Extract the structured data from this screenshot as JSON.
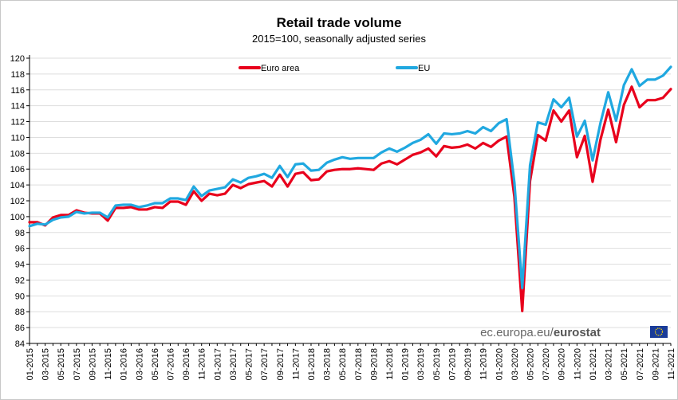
{
  "chart_data": {
    "type": "line",
    "title": "Retail trade volume",
    "subtitle": "2015=100, seasonally adjusted series",
    "ylim": [
      84,
      120
    ],
    "yticks": [
      84,
      86,
      88,
      90,
      92,
      94,
      96,
      98,
      100,
      102,
      104,
      106,
      108,
      110,
      112,
      114,
      116,
      118,
      120
    ],
    "grid": true,
    "legend_position": "top",
    "x": [
      "01-2015",
      "02-2015",
      "03-2015",
      "04-2015",
      "05-2015",
      "06-2015",
      "07-2015",
      "08-2015",
      "09-2015",
      "10-2015",
      "11-2015",
      "12-2015",
      "01-2016",
      "02-2016",
      "03-2016",
      "04-2016",
      "05-2016",
      "06-2016",
      "07-2016",
      "08-2016",
      "09-2016",
      "10-2016",
      "11-2016",
      "12-2016",
      "01-2017",
      "02-2017",
      "03-2017",
      "04-2017",
      "05-2017",
      "06-2017",
      "07-2017",
      "08-2017",
      "09-2017",
      "10-2017",
      "11-2017",
      "12-2017",
      "01-2018",
      "02-2018",
      "03-2018",
      "04-2018",
      "05-2018",
      "06-2018",
      "07-2018",
      "08-2018",
      "09-2018",
      "10-2018",
      "11-2018",
      "12-2018",
      "01-2019",
      "02-2019",
      "03-2019",
      "04-2019",
      "05-2019",
      "06-2019",
      "07-2019",
      "08-2019",
      "09-2019",
      "10-2019",
      "11-2019",
      "12-2019",
      "01-2020",
      "02-2020",
      "03-2020",
      "04-2020",
      "05-2020",
      "06-2020",
      "07-2020",
      "08-2020",
      "09-2020",
      "10-2020",
      "11-2020",
      "12-2020",
      "01-2021",
      "02-2021",
      "03-2021",
      "04-2021",
      "05-2021",
      "06-2021",
      "07-2021",
      "08-2021",
      "09-2021",
      "10-2021",
      "11-2021"
    ],
    "xtick_labels": [
      "01-2015",
      "03-2015",
      "05-2015",
      "07-2015",
      "09-2015",
      "11-2015",
      "01-2016",
      "03-2016",
      "05-2016",
      "07-2016",
      "09-2016",
      "11-2016",
      "01-2017",
      "03-2017",
      "05-2017",
      "07-2017",
      "09-2017",
      "11-2017",
      "01-2018",
      "03-2018",
      "05-2018",
      "07-2018",
      "09-2018",
      "11-2018",
      "01-2019",
      "03-2019",
      "05-2019",
      "07-2019",
      "09-2019",
      "11-2019",
      "01-2020",
      "03-2020",
      "05-2020",
      "07-2020",
      "09-2020",
      "11-2020",
      "01-2021",
      "03-2021",
      "05-2021",
      "07-2021",
      "09-2021",
      "11-2021"
    ],
    "series": [
      {
        "name": "Euro area",
        "color": "#e8001c",
        "values": [
          99.3,
          99.3,
          98.9,
          99.9,
          100.2,
          100.2,
          100.8,
          100.5,
          100.4,
          100.4,
          99.5,
          101.1,
          101.1,
          101.2,
          100.9,
          100.9,
          101.2,
          101.1,
          101.9,
          101.9,
          101.5,
          103.2,
          102.0,
          102.9,
          102.7,
          102.9,
          104.0,
          103.6,
          104.1,
          104.3,
          104.5,
          103.8,
          105.3,
          103.8,
          105.4,
          105.6,
          104.6,
          104.7,
          105.7,
          105.9,
          106.0,
          106.0,
          106.1,
          106.0,
          105.9,
          106.7,
          107.0,
          106.6,
          107.2,
          107.8,
          108.1,
          108.6,
          107.6,
          108.9,
          108.7,
          108.8,
          109.1,
          108.6,
          109.3,
          108.8,
          109.6,
          110.1,
          102.5,
          88.1,
          104.5,
          110.3,
          109.6,
          113.4,
          112.0,
          113.4,
          107.5,
          110.2,
          104.4,
          109.7,
          113.5,
          109.4,
          114.1,
          116.4,
          113.8,
          114.7,
          114.7,
          115.0,
          116.1
        ]
      },
      {
        "name": "EU",
        "color": "#20a8e0",
        "values": [
          98.8,
          99.1,
          99.0,
          99.6,
          99.9,
          100.0,
          100.6,
          100.4,
          100.5,
          100.5,
          99.9,
          101.4,
          101.5,
          101.5,
          101.2,
          101.4,
          101.7,
          101.7,
          102.3,
          102.3,
          102.1,
          103.8,
          102.6,
          103.3,
          103.5,
          103.7,
          104.7,
          104.3,
          104.9,
          105.1,
          105.4,
          104.9,
          106.4,
          105.0,
          106.6,
          106.7,
          105.8,
          105.9,
          106.8,
          107.2,
          107.5,
          107.3,
          107.4,
          107.4,
          107.4,
          108.1,
          108.6,
          108.2,
          108.7,
          109.3,
          109.7,
          110.4,
          109.2,
          110.5,
          110.4,
          110.5,
          110.8,
          110.5,
          111.3,
          110.8,
          111.8,
          112.3,
          104.3,
          91.0,
          106.5,
          111.9,
          111.6,
          114.8,
          113.8,
          115.0,
          110.1,
          112.1,
          107.1,
          111.8,
          115.7,
          112.1,
          116.6,
          118.6,
          116.5,
          117.3,
          117.3,
          117.8,
          118.9
        ]
      }
    ],
    "source": {
      "domain": "ec.europa.eu/",
      "brand": "eurostat"
    }
  }
}
